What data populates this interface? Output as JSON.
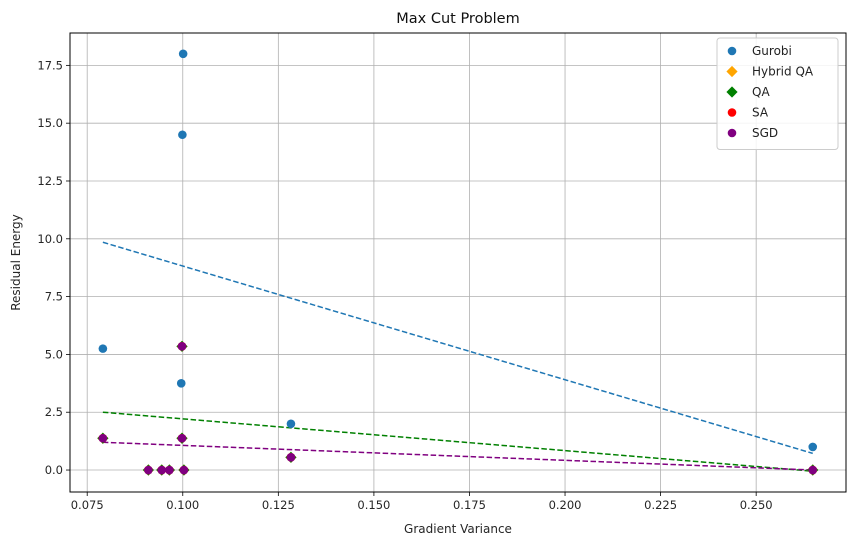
{
  "chart_data": {
    "type": "scatter",
    "title": "Max Cut Problem",
    "xlabel": "Gradient Variance",
    "ylabel": "Residual Energy",
    "xlim": [
      0.0705,
      0.2735
    ],
    "ylim": [
      -0.95,
      18.9
    ],
    "xticks": [
      0.075,
      0.1,
      0.125,
      0.15,
      0.175,
      0.2,
      0.225,
      0.25
    ],
    "xtick_labels": [
      "0.075",
      "0.100",
      "0.125",
      "0.150",
      "0.175",
      "0.200",
      "0.225",
      "0.250"
    ],
    "yticks": [
      0,
      2.5,
      5,
      7.5,
      10,
      12.5,
      15,
      17.5
    ],
    "ytick_labels": [
      "0.0",
      "2.5",
      "5.0",
      "7.5",
      "10.0",
      "12.5",
      "15.0",
      "17.5"
    ],
    "grid": true,
    "legend_position": "top-right",
    "series": [
      {
        "name": "Gurobi",
        "marker": "circle",
        "color": "#1f77b4",
        "x": [
          0.1001,
          0.0999,
          0.0791,
          0.0996,
          0.1283,
          0.2648
        ],
        "y": [
          18.0,
          14.5,
          5.25,
          3.75,
          2.0,
          1.0
        ],
        "trend": {
          "x": [
            0.0791,
            0.2648
          ],
          "y": [
            9.85,
            0.72
          ]
        }
      },
      {
        "name": "Hybrid QA",
        "marker": "diamond",
        "color": "#ffa500",
        "x": [
          0.0791,
          0.0998,
          0.0998,
          0.1283,
          0.2648,
          0.091,
          0.0945,
          0.0965,
          0.1003
        ],
        "y": [
          1.375,
          5.35,
          1.375,
          0.55,
          0.0,
          0.0,
          0.0,
          0.0,
          0.0
        ]
      },
      {
        "name": "QA",
        "marker": "diamond",
        "color": "#008000",
        "x": [
          0.0791,
          0.0998,
          0.0998,
          0.1283,
          0.2648,
          0.091,
          0.0945,
          0.0965,
          0.1003
        ],
        "y": [
          1.375,
          5.35,
          1.375,
          0.55,
          0.0,
          0.0,
          0.0,
          0.0,
          0.0
        ],
        "trend": {
          "x": [
            0.0791,
            0.2648
          ],
          "y": [
            2.5,
            -0.05
          ]
        }
      },
      {
        "name": "SA",
        "marker": "circle",
        "color": "#ff0000",
        "x": [
          0.0791,
          0.0998,
          0.0998,
          0.1283,
          0.2648,
          0.091,
          0.0945,
          0.0965,
          0.1003
        ],
        "y": [
          1.375,
          5.35,
          1.375,
          0.55,
          0.0,
          0.0,
          0.0,
          0.0,
          0.0
        ]
      },
      {
        "name": "SGD",
        "marker": "circle",
        "color": "#800080",
        "x": [
          0.0791,
          0.0998,
          0.0998,
          0.1283,
          0.2648,
          0.091,
          0.0945,
          0.0965,
          0.1003
        ],
        "y": [
          1.375,
          5.35,
          1.375,
          0.55,
          0.0,
          0.0,
          0.0,
          0.0,
          0.0
        ],
        "trend": {
          "x": [
            0.0791,
            0.2648
          ],
          "y": [
            1.2,
            0.0
          ]
        }
      }
    ]
  }
}
